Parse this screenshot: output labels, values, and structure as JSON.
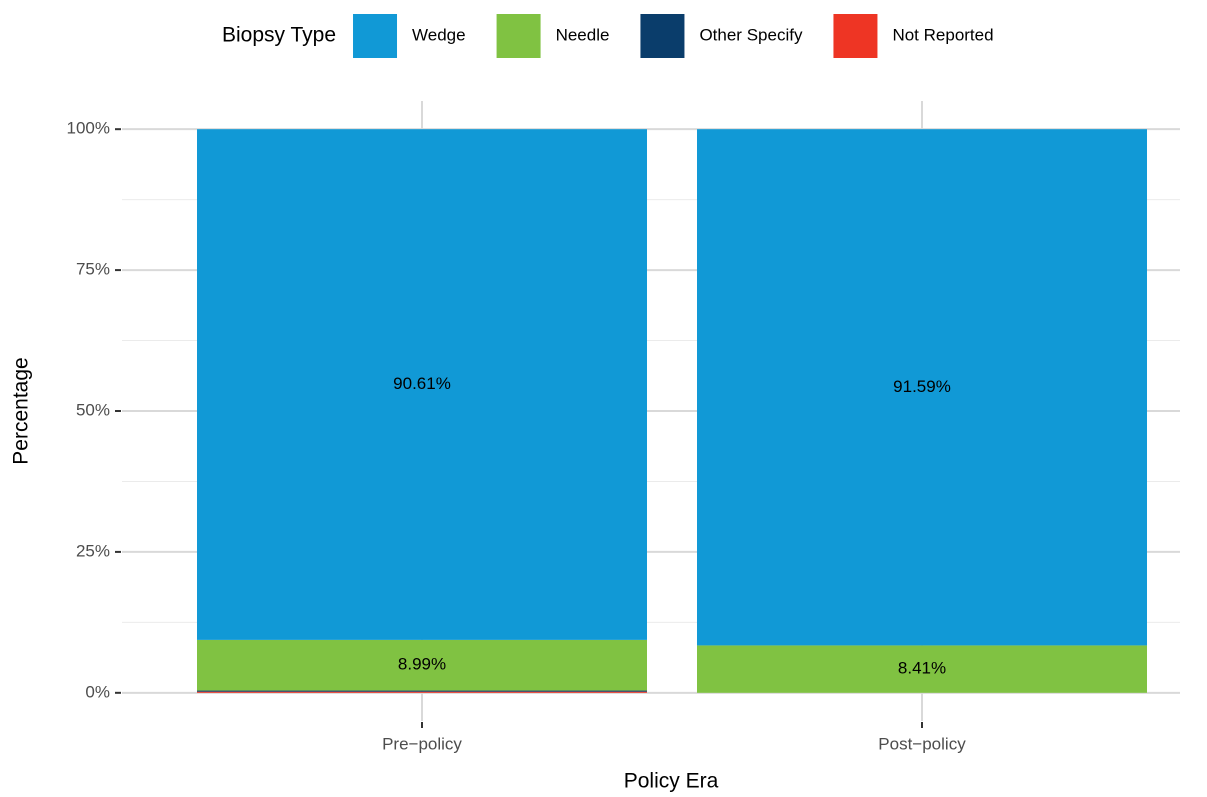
{
  "chart_data": {
    "type": "stacked_bar",
    "x_label": "Policy Era",
    "y_label": "Percentage",
    "legend_title": "Biopsy Type",
    "legend_position": "top",
    "categories": [
      "Pre−policy",
      "Post−policy"
    ],
    "series": [
      {
        "name": "Not Reported",
        "color": "#ee3524",
        "values": [
          0.2,
          0
        ]
      },
      {
        "name": "Other Specify",
        "color": "#0a3d6b",
        "values": [
          0.2,
          0
        ]
      },
      {
        "name": "Needle",
        "color": "#80c242",
        "values": [
          8.99,
          8.41
        ],
        "value_labels": [
          "8.99%",
          "8.41%"
        ]
      },
      {
        "name": "Wedge",
        "color": "#1199d6",
        "values": [
          90.61,
          91.59
        ],
        "value_labels": [
          "90.61%",
          "91.59%"
        ]
      }
    ],
    "legend_order": [
      3,
      2,
      1,
      0
    ],
    "ylim": [
      -5,
      105
    ],
    "yticks": [
      {
        "value": 0,
        "label": "0%"
      },
      {
        "value": 25,
        "label": "25%"
      },
      {
        "value": 50,
        "label": "50%"
      },
      {
        "value": 75,
        "label": "75%"
      },
      {
        "value": 100,
        "label": "100%"
      }
    ],
    "minor_yticks": [
      12.5,
      37.5,
      62.5,
      87.5
    ],
    "grid": true
  }
}
